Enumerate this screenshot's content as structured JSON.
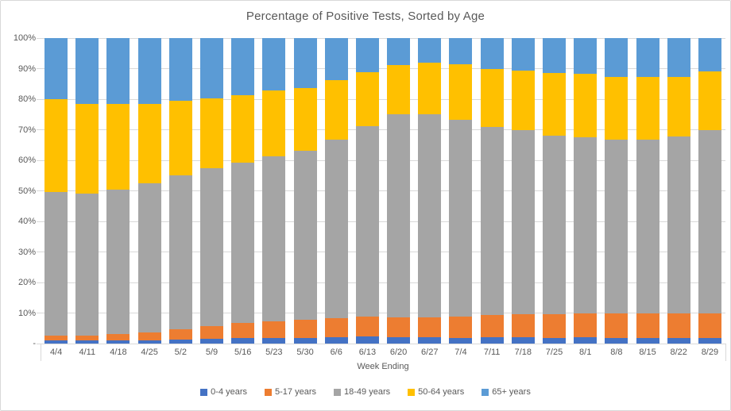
{
  "title": "Percentage of Positive Tests, Sorted by Age",
  "x_axis_title": "Week Ending",
  "colors": {
    "series_0_4": "#4472C4",
    "series_5_17": "#ED7D31",
    "series_18_49": "#A5A5A5",
    "series_50_64": "#FFC000",
    "series_65_plus": "#5B9BD5",
    "gridline": "#D9D9D9",
    "text": "#595959"
  },
  "chart_data": {
    "type": "bar",
    "stacked": true,
    "title": "Percentage of Positive Tests, Sorted by Age",
    "xlabel": "Week Ending",
    "ylabel": "",
    "ylim": [
      0,
      100
    ],
    "grid": true,
    "legend_position": "bottom",
    "y_tick_values": [
      100,
      90,
      80,
      70,
      60,
      50,
      40,
      30,
      20,
      10,
      0
    ],
    "y_tick_labels": [
      "100%",
      "90%",
      "80%",
      "70%",
      "60%",
      "50%",
      "40%",
      "30%",
      "20%",
      "10%",
      "-"
    ],
    "categories": [
      "4/4",
      "4/11",
      "4/18",
      "4/25",
      "5/2",
      "5/9",
      "5/16",
      "5/23",
      "5/30",
      "6/6",
      "6/13",
      "6/20",
      "6/27",
      "7/4",
      "7/11",
      "7/18",
      "7/25",
      "8/1",
      "8/8",
      "8/15",
      "8/22",
      "8/29"
    ],
    "series": [
      {
        "name": "0-4 years",
        "color": "#4472C4",
        "values": [
          1.0,
          1.0,
          1.0,
          1.0,
          1.3,
          1.5,
          1.9,
          1.7,
          1.9,
          2.2,
          2.4,
          2.2,
          2.2,
          1.9,
          2.2,
          2.2,
          1.9,
          2.0,
          1.8,
          1.9,
          1.9,
          1.8
        ]
      },
      {
        "name": "5-17 years",
        "color": "#ED7D31",
        "values": [
          1.5,
          1.5,
          2.0,
          2.7,
          3.4,
          4.1,
          4.8,
          5.5,
          5.9,
          6.0,
          6.4,
          6.4,
          6.3,
          6.9,
          7.2,
          7.5,
          7.8,
          7.8,
          8.1,
          7.9,
          8.1,
          8.1
        ]
      },
      {
        "name": "18-49 years",
        "color": "#A5A5A5",
        "values": [
          47.0,
          46.5,
          47.5,
          48.8,
          50.3,
          51.7,
          52.4,
          54.2,
          55.2,
          58.6,
          62.4,
          66.5,
          66.6,
          64.4,
          61.6,
          60.3,
          58.3,
          57.7,
          56.9,
          57.0,
          57.7,
          60.1
        ]
      },
      {
        "name": "50-64 years",
        "color": "#FFC000",
        "values": [
          30.5,
          29.5,
          28.0,
          26.0,
          24.5,
          23.0,
          22.1,
          21.4,
          20.7,
          19.4,
          17.7,
          16.2,
          16.8,
          18.3,
          18.8,
          19.4,
          20.7,
          20.8,
          20.4,
          20.6,
          19.7,
          19.2
        ]
      },
      {
        "name": "65+ years",
        "color": "#5B9BD5",
        "values": [
          20.0,
          21.5,
          21.5,
          21.5,
          20.5,
          19.7,
          18.8,
          17.2,
          16.3,
          13.8,
          11.1,
          8.7,
          8.1,
          8.5,
          10.2,
          10.6,
          11.3,
          11.7,
          12.8,
          12.6,
          12.6,
          10.8
        ]
      }
    ]
  }
}
